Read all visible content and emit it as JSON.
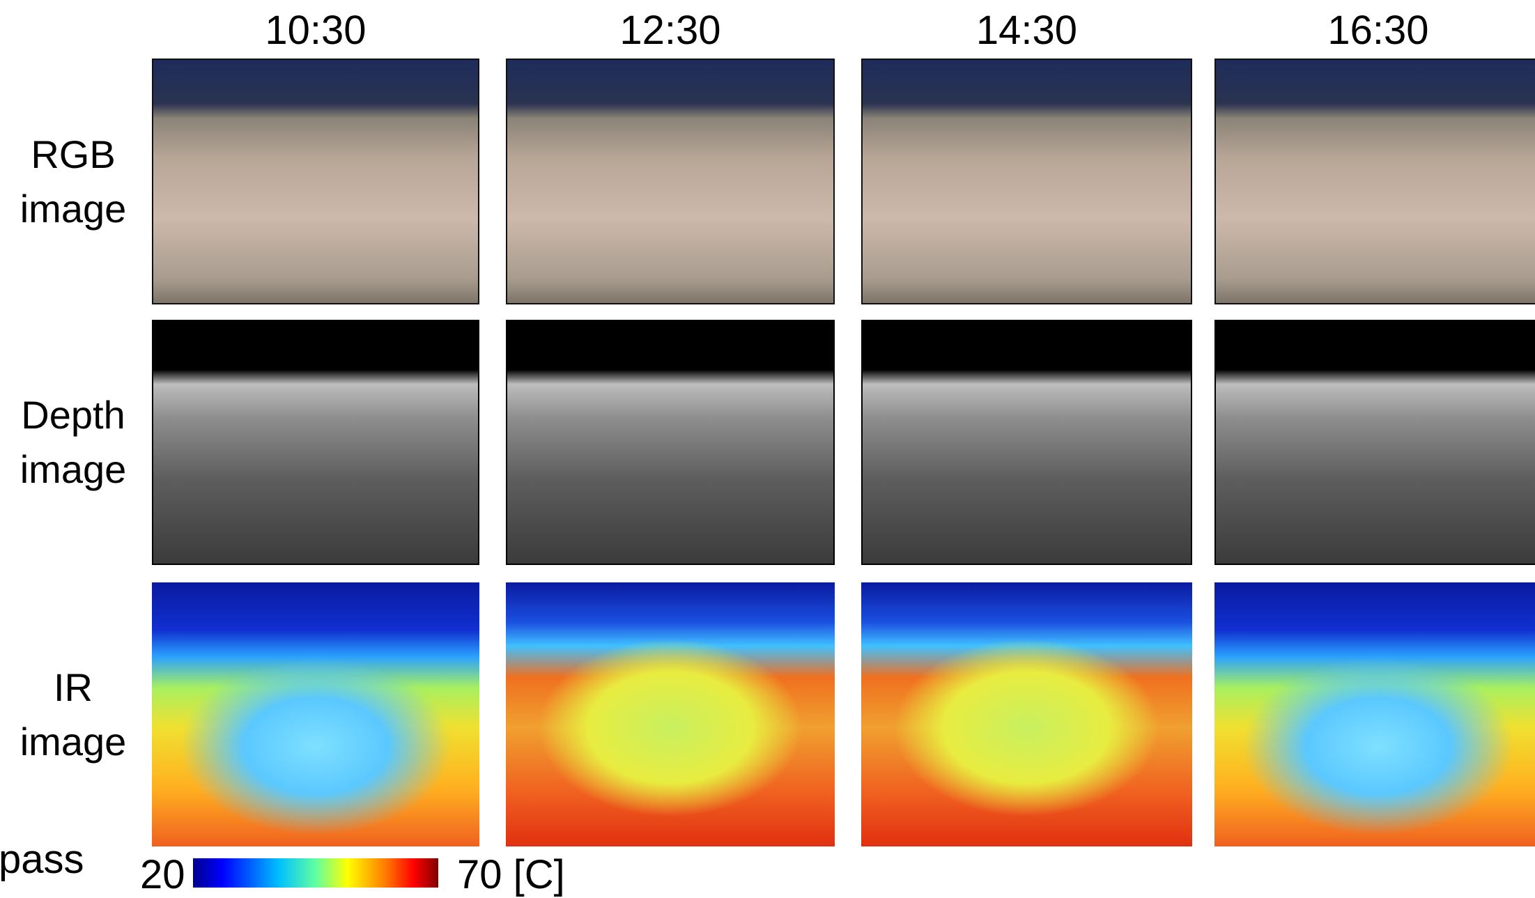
{
  "columns": [
    "10:30",
    "12:30",
    "14:30",
    "16:30"
  ],
  "rows": [
    [
      "RGB",
      "image"
    ],
    [
      "Depth",
      "image"
    ],
    [
      "IR",
      "image"
    ]
  ],
  "side_text": "pass",
  "colorbar": {
    "min_label": "20",
    "max_label": "70 [C]"
  }
}
